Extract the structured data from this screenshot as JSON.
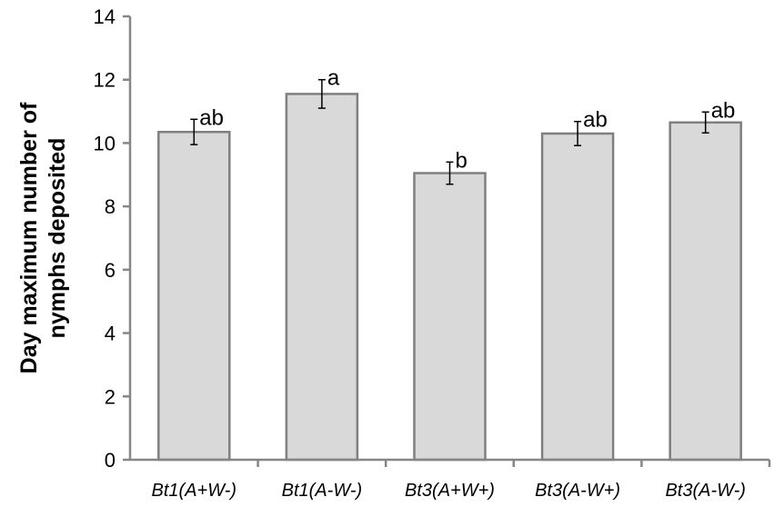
{
  "chart_data": {
    "type": "bar",
    "categories": [
      "Bt1(A+W-)",
      "Bt1(A-W-)",
      "Bt3(A+W+)",
      "Bt3(A-W+)",
      "Bt3(A-W-)"
    ],
    "values": [
      10.35,
      11.55,
      9.05,
      10.3,
      10.65
    ],
    "errors": [
      0.4,
      0.45,
      0.35,
      0.38,
      0.33
    ],
    "significance_letters": [
      "ab",
      "a",
      "b",
      "ab",
      "ab"
    ],
    "ylabel_lines": [
      "Day maximum number of",
      "nymphs deposited"
    ],
    "xlabel": "",
    "ylim": [
      0,
      14
    ],
    "yticks": [
      0,
      2,
      4,
      6,
      8,
      10,
      12,
      14
    ],
    "grid": false,
    "colors": {
      "bar_fill": "#d9d9d9",
      "bar_stroke": "#7f7f7f",
      "axis": "#868686",
      "error_bar": "#000000"
    }
  }
}
